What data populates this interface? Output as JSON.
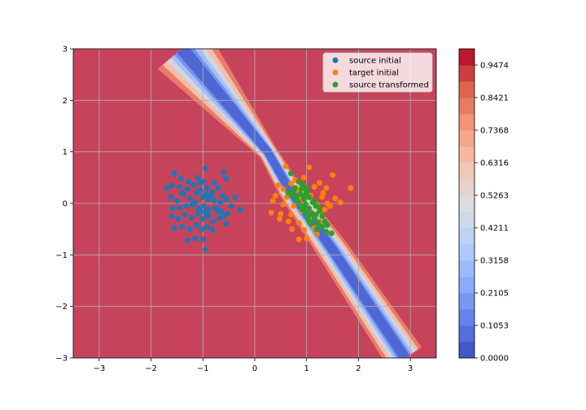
{
  "chart_data": {
    "type": "scatter",
    "title": "",
    "xlabel": "",
    "ylabel": "",
    "xlim": [
      -3.5,
      3.5
    ],
    "ylim": [
      -3,
      3
    ],
    "xticks": [
      -3,
      -2,
      -1,
      0,
      1,
      2,
      3
    ],
    "yticks": [
      -3,
      -2,
      -1,
      0,
      1,
      2,
      3
    ],
    "xtick_labels": [
      "−3",
      "−2",
      "−1",
      "0",
      "1",
      "2",
      "3"
    ],
    "ytick_labels": [
      "−3",
      "−2",
      "−1",
      "0",
      "1",
      "2",
      "3"
    ],
    "grid": true,
    "legend_position": "top-right",
    "background": {
      "type": "contourf",
      "colormap": "coolwarm",
      "band_description": "low-probability diagonal valley from upper-left to lower-right, values near 0 in center, near 1 elsewhere",
      "band_centerline": [
        [
          -1.4,
          3.0
        ],
        [
          0.25,
          1.0
        ],
        [
          0.65,
          0.3
        ],
        [
          1.5,
          -0.9
        ],
        [
          2.9,
          -3.0
        ]
      ]
    },
    "colorbar": {
      "ticks": [
        0.0,
        0.1053,
        0.2105,
        0.3158,
        0.4211,
        0.5263,
        0.6316,
        0.7368,
        0.8421,
        0.9474
      ],
      "tick_labels": [
        "0.0000",
        "0.1053",
        "0.2105",
        "0.3158",
        "0.4211",
        "0.5263",
        "0.6316",
        "0.7368",
        "0.8421",
        "0.9474"
      ],
      "min": 0.0,
      "max": 1.0,
      "levels": 19
    },
    "series": [
      {
        "name": "source initial",
        "color": "#1f77b4",
        "points": [
          [
            -1.55,
            0.58
          ],
          [
            -1.42,
            0.48
          ],
          [
            -1.28,
            0.42
          ],
          [
            -1.1,
            0.5
          ],
          [
            -0.95,
            0.68
          ],
          [
            -0.6,
            0.6
          ],
          [
            -0.55,
            0.48
          ],
          [
            -0.78,
            0.4
          ],
          [
            -1.6,
            0.35
          ],
          [
            -1.45,
            0.32
          ],
          [
            -1.3,
            0.28
          ],
          [
            -1.18,
            0.36
          ],
          [
            -1.05,
            0.4
          ],
          [
            -0.92,
            0.3
          ],
          [
            -0.82,
            0.22
          ],
          [
            -0.7,
            0.3
          ],
          [
            -0.62,
            0.15
          ],
          [
            -0.38,
            0.12
          ],
          [
            -1.7,
            0.3
          ],
          [
            -1.62,
            0.12
          ],
          [
            -1.5,
            0.05
          ],
          [
            -1.38,
            0.18
          ],
          [
            -1.25,
            0.1
          ],
          [
            -1.12,
            0.2
          ],
          [
            -1.0,
            0.12
          ],
          [
            -0.9,
            0.08
          ],
          [
            -0.78,
            0.05
          ],
          [
            -0.66,
            0.02
          ],
          [
            -0.55,
            0.08
          ],
          [
            -0.45,
            -0.05
          ],
          [
            -0.28,
            -0.12
          ],
          [
            -1.58,
            -0.1
          ],
          [
            -1.45,
            -0.08
          ],
          [
            -1.32,
            -0.05
          ],
          [
            -1.2,
            -0.02
          ],
          [
            -1.08,
            -0.1
          ],
          [
            -0.98,
            -0.05
          ],
          [
            -0.88,
            -0.12
          ],
          [
            -0.75,
            -0.08
          ],
          [
            -0.65,
            -0.15
          ],
          [
            -0.52,
            -0.2
          ],
          [
            -1.6,
            -0.25
          ],
          [
            -1.48,
            -0.3
          ],
          [
            -1.35,
            -0.22
          ],
          [
            -1.22,
            -0.28
          ],
          [
            -1.1,
            -0.2
          ],
          [
            -1.0,
            -0.3
          ],
          [
            -0.9,
            -0.25
          ],
          [
            -0.8,
            -0.35
          ],
          [
            -0.68,
            -0.28
          ],
          [
            -0.55,
            -0.4
          ],
          [
            -1.55,
            -0.48
          ],
          [
            -1.4,
            -0.45
          ],
          [
            -1.25,
            -0.5
          ],
          [
            -1.12,
            -0.42
          ],
          [
            -1.02,
            -0.5
          ],
          [
            -0.92,
            -0.46
          ],
          [
            -0.82,
            -0.52
          ],
          [
            -1.3,
            -0.72
          ],
          [
            -1.15,
            -0.68
          ],
          [
            -1.0,
            -0.7
          ],
          [
            -0.95,
            -0.9
          ],
          [
            -1.05,
            0.25
          ],
          [
            -0.95,
            0.18
          ],
          [
            -0.85,
            0.15
          ],
          [
            -1.15,
            0.02
          ],
          [
            -1.05,
            -0.15
          ],
          [
            -0.95,
            -0.18
          ],
          [
            -0.72,
            -0.15
          ],
          [
            -0.6,
            -0.25
          ],
          [
            -1.4,
            0.2
          ],
          [
            -1.0,
            0.42
          ]
        ]
      },
      {
        "name": "target initial",
        "color": "#ff7f0e",
        "points": [
          [
            0.6,
            0.72
          ],
          [
            1.05,
            0.7
          ],
          [
            1.5,
            0.55
          ],
          [
            0.95,
            0.5
          ],
          [
            1.25,
            0.4
          ],
          [
            0.7,
            0.38
          ],
          [
            0.55,
            0.28
          ],
          [
            0.82,
            0.25
          ],
          [
            1.15,
            0.32
          ],
          [
            1.38,
            0.3
          ],
          [
            1.85,
            0.3
          ],
          [
            0.4,
            0.15
          ],
          [
            0.62,
            0.12
          ],
          [
            0.88,
            0.1
          ],
          [
            1.08,
            0.15
          ],
          [
            1.3,
            0.12
          ],
          [
            1.55,
            0.1
          ],
          [
            0.35,
            0.05
          ],
          [
            0.55,
            -0.02
          ],
          [
            0.75,
            -0.05
          ],
          [
            0.95,
            0.02
          ],
          [
            1.2,
            -0.02
          ],
          [
            1.45,
            -0.05
          ],
          [
            1.65,
            0.02
          ],
          [
            0.32,
            -0.18
          ],
          [
            0.5,
            -0.2
          ],
          [
            0.7,
            -0.22
          ],
          [
            0.9,
            -0.15
          ],
          [
            1.1,
            -0.18
          ],
          [
            1.35,
            -0.12
          ],
          [
            0.48,
            -0.3
          ],
          [
            0.65,
            -0.35
          ],
          [
            0.85,
            -0.38
          ],
          [
            1.05,
            -0.3
          ],
          [
            1.25,
            -0.35
          ],
          [
            0.72,
            -0.5
          ],
          [
            0.95,
            -0.52
          ],
          [
            1.15,
            -0.48
          ],
          [
            0.85,
            -0.7
          ],
          [
            1.0,
            -0.68
          ],
          [
            1.2,
            -0.6
          ],
          [
            0.45,
            0.35
          ],
          [
            1.4,
            0.0
          ],
          [
            0.78,
            0.45
          ],
          [
            1.32,
            0.2
          ]
        ]
      },
      {
        "name": "source transformed",
        "color": "#2ca02c",
        "points": [
          [
            0.7,
            0.58
          ],
          [
            0.85,
            0.42
          ],
          [
            0.78,
            0.3
          ],
          [
            0.92,
            0.35
          ],
          [
            1.0,
            0.22
          ],
          [
            0.88,
            0.18
          ],
          [
            0.72,
            0.15
          ],
          [
            1.05,
            0.12
          ],
          [
            0.95,
            0.08
          ],
          [
            0.82,
            0.05
          ],
          [
            1.12,
            0.02
          ],
          [
            0.98,
            -0.02
          ],
          [
            0.88,
            -0.05
          ],
          [
            1.18,
            -0.05
          ],
          [
            1.05,
            -0.1
          ],
          [
            0.92,
            -0.12
          ],
          [
            1.25,
            -0.15
          ],
          [
            1.1,
            -0.2
          ],
          [
            0.98,
            -0.18
          ],
          [
            1.3,
            -0.25
          ],
          [
            1.15,
            -0.3
          ],
          [
            1.02,
            -0.28
          ],
          [
            1.22,
            -0.38
          ],
          [
            1.08,
            -0.4
          ],
          [
            1.3,
            -0.45
          ],
          [
            1.2,
            -0.5
          ],
          [
            1.38,
            -0.55
          ],
          [
            1.48,
            -0.58
          ],
          [
            0.75,
            0.25
          ],
          [
            0.65,
            0.2
          ],
          [
            1.0,
            0.3
          ],
          [
            0.8,
            0.1
          ],
          [
            1.15,
            0.05
          ],
          [
            0.9,
            0.28
          ],
          [
            1.25,
            -0.08
          ],
          [
            1.05,
            -0.35
          ],
          [
            1.35,
            -0.35
          ],
          [
            0.95,
            0.15
          ],
          [
            1.18,
            -0.22
          ],
          [
            1.4,
            -0.42
          ]
        ]
      }
    ]
  }
}
